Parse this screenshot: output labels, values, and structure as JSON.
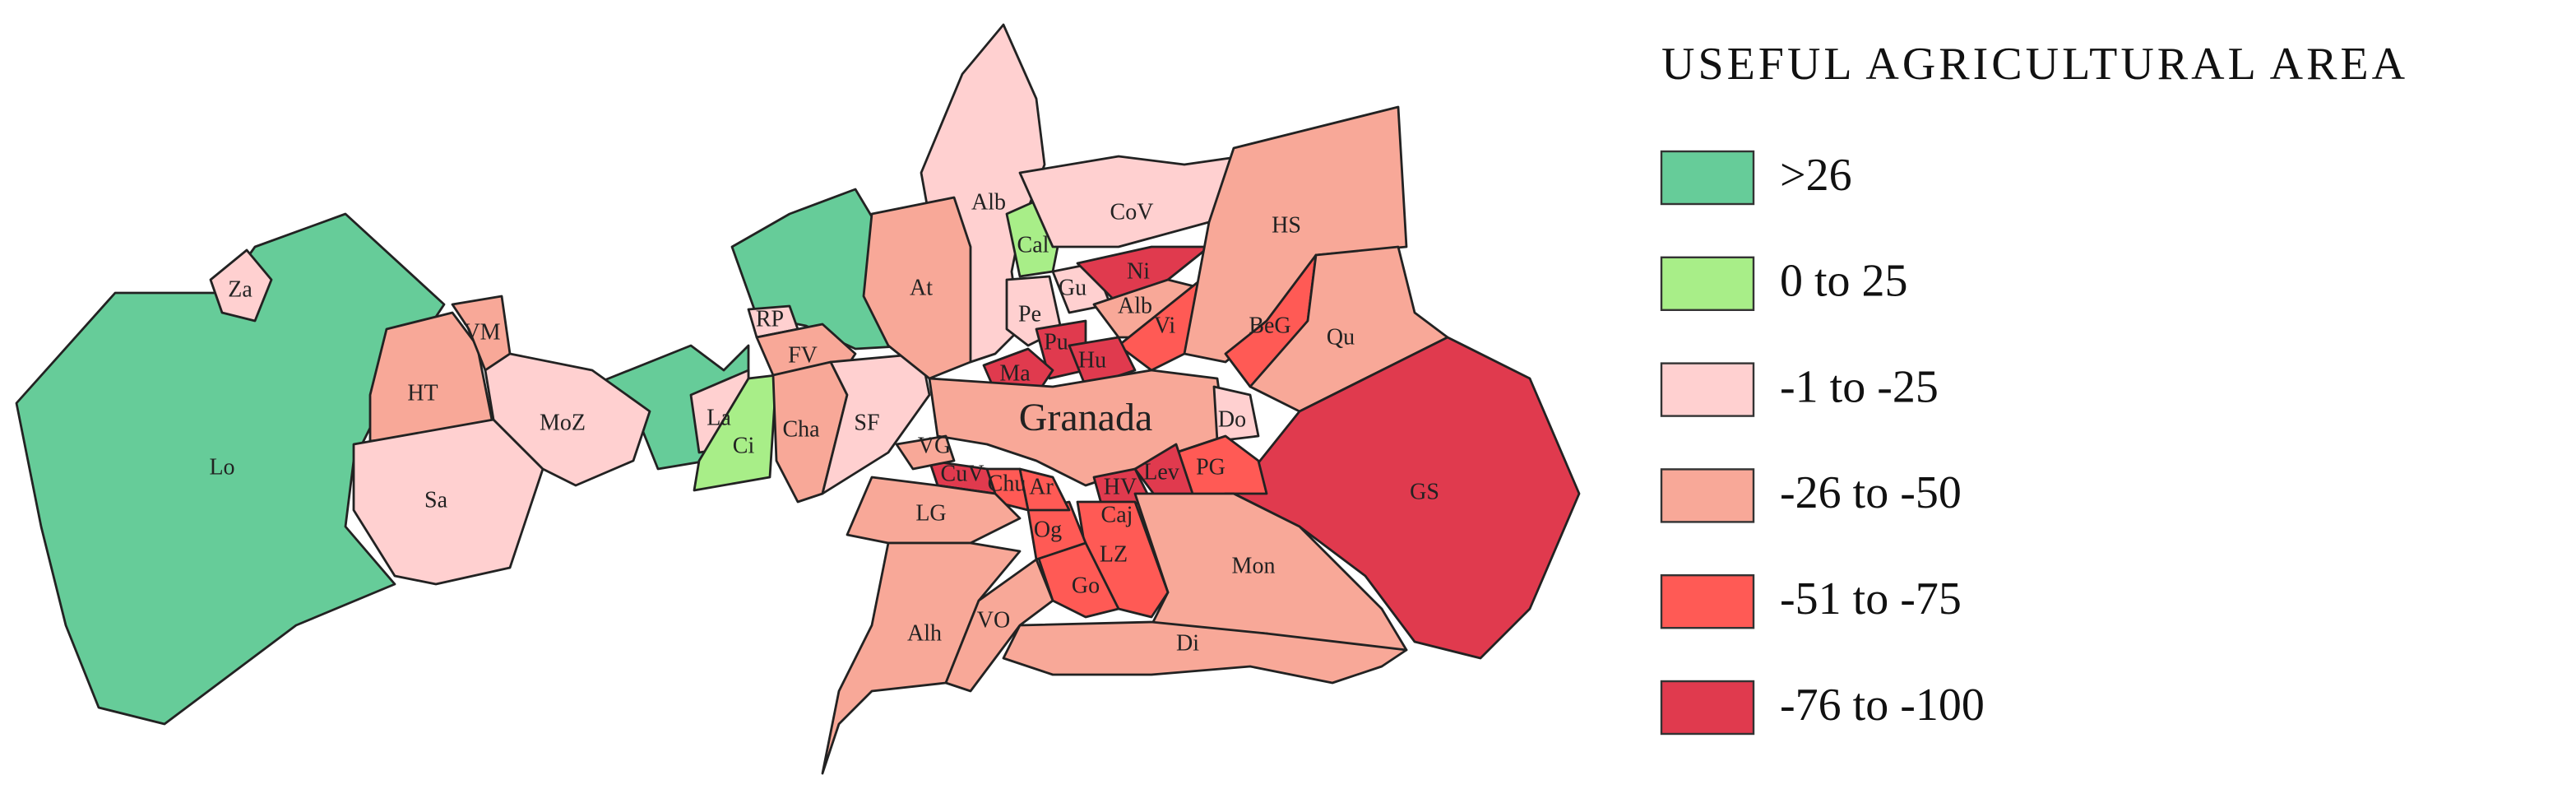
{
  "title": "USEFUL AGRICULTURAL AREA",
  "legend": [
    {
      "label": ">26",
      "color": "#66cc99"
    },
    {
      "label": "0 to 25",
      "color": "#a8ee88"
    },
    {
      "label": "-1 to -25",
      "color": "#ffd0d0"
    },
    {
      "label": "-26 to -50",
      "color": "#f8a898"
    },
    {
      "label": "-51 to -75",
      "color": "#ff5a55"
    },
    {
      "label": "-76 to -100",
      "color": "#e03a4e"
    }
  ],
  "regions": [
    {
      "label": "Lo",
      "color": "#66cc99"
    },
    {
      "label": "Za",
      "color": "#ffd0d0"
    },
    {
      "label": "HT",
      "color": "#f8a898"
    },
    {
      "label": "VM",
      "color": "#f8a898"
    },
    {
      "label": "Sa",
      "color": "#ffd0d0"
    },
    {
      "label": "MoZ",
      "color": "#ffd0d0"
    },
    {
      "label": "RP",
      "color": "#ffd0d0"
    },
    {
      "label": "FV",
      "color": "#f8a898"
    },
    {
      "label": "La",
      "color": "#ffd0d0"
    },
    {
      "label": "Ci",
      "color": "#a8ee88"
    },
    {
      "label": "Cha",
      "color": "#f8a898"
    },
    {
      "label": "SF",
      "color": "#ffd0d0"
    },
    {
      "label": "Alb",
      "color": "#ffd0d0"
    },
    {
      "label": "At",
      "color": "#f8a898"
    },
    {
      "label": "Cal",
      "color": "#a8ee88"
    },
    {
      "label": "CoV",
      "color": "#ffd0d0"
    },
    {
      "label": "Gu",
      "color": "#ffd0d0"
    },
    {
      "label": "Pe",
      "color": "#ffd0d0"
    },
    {
      "label": "Ni",
      "color": "#e03a4e"
    },
    {
      "label": "Alb",
      "color": "#f8a898"
    },
    {
      "label": "Vi",
      "color": "#ff5a55"
    },
    {
      "label": "Pu",
      "color": "#e03a4e"
    },
    {
      "label": "Ma",
      "color": "#e03a4e"
    },
    {
      "label": "Hu",
      "color": "#e03a4e"
    },
    {
      "label": "HS",
      "color": "#f8a898"
    },
    {
      "label": "BeG",
      "color": "#ff5a55"
    },
    {
      "label": "Qu",
      "color": "#f8a898"
    },
    {
      "label": "Granada",
      "color": "#f8a898"
    },
    {
      "label": "Do",
      "color": "#ffd0d0"
    },
    {
      "label": "GS",
      "color": "#e03a4e"
    },
    {
      "label": "PG",
      "color": "#ff5a55"
    },
    {
      "label": "Lev",
      "color": "#e03a4e"
    },
    {
      "label": "HV",
      "color": "#e03a4e"
    },
    {
      "label": "Caj",
      "color": "#ff5a55"
    },
    {
      "label": "Mon",
      "color": "#f8a898"
    },
    {
      "label": "Di",
      "color": "#f8a898"
    },
    {
      "label": "LZ",
      "color": "#ff5a55"
    },
    {
      "label": "Go",
      "color": "#ff5a55"
    },
    {
      "label": "Og",
      "color": "#ff5a55"
    },
    {
      "label": "Ar",
      "color": "#ff5a55"
    },
    {
      "label": "Chu",
      "color": "#ff5a55"
    },
    {
      "label": "CuV",
      "color": "#e03a4e"
    },
    {
      "label": "VG",
      "color": "#f8a898"
    },
    {
      "label": "LG",
      "color": "#f8a898"
    },
    {
      "label": "Alh",
      "color": "#f8a898"
    },
    {
      "label": "VO",
      "color": "#f8a898"
    }
  ]
}
